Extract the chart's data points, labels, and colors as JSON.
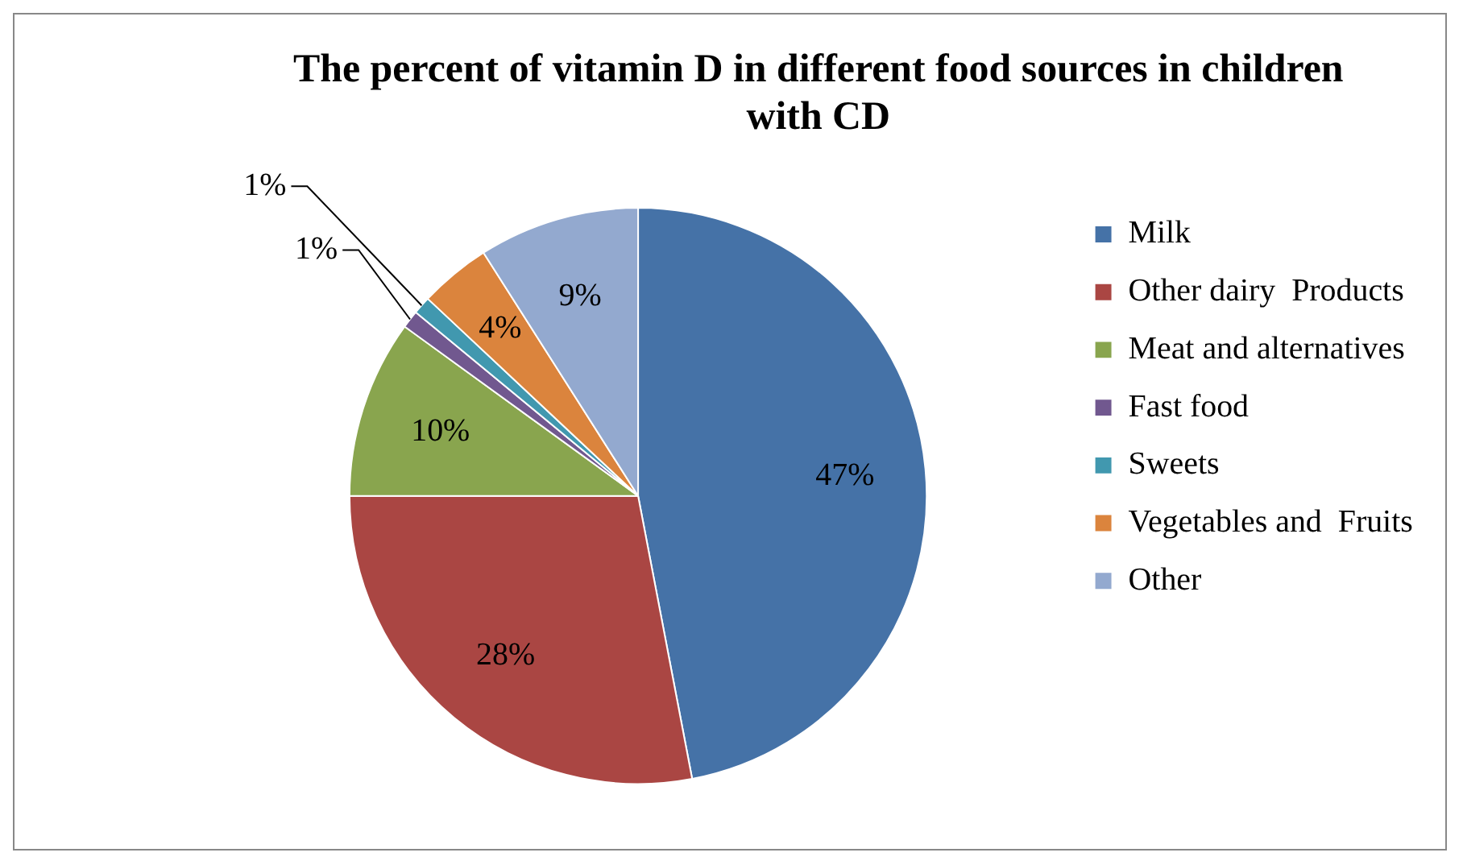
{
  "chart_data": {
    "type": "pie",
    "title": "The percent of vitamin D in different food sources in children with CD",
    "categories": [
      "Milk",
      "Other dairy  Products",
      "Meat and alternatives",
      "Fast food",
      "Sweets",
      "Vegetables and  Fruits",
      "Other"
    ],
    "values": [
      47,
      28,
      10,
      1,
      1,
      4,
      9
    ],
    "colors": [
      "#4572a7",
      "#aa4643",
      "#89a54e",
      "#71588f",
      "#4198af",
      "#db843d",
      "#93a9cf"
    ],
    "value_labels": [
      "47%",
      "28%",
      "10%",
      "1%",
      "1%",
      "4%",
      "9%"
    ],
    "legend": "right"
  }
}
